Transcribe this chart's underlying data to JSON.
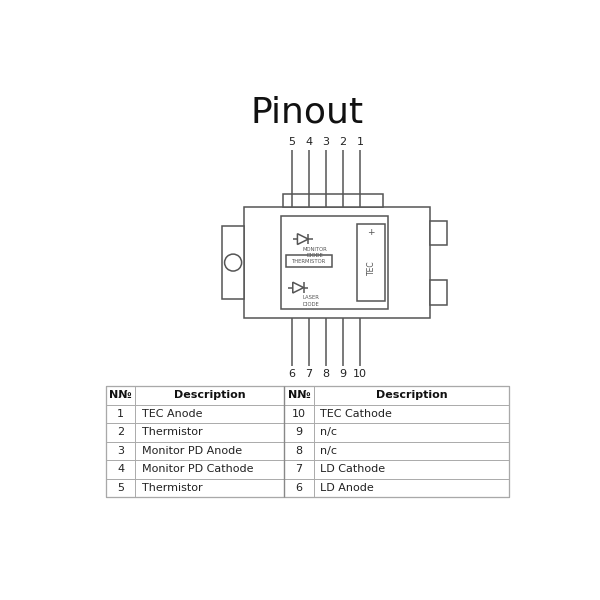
{
  "title": "Pinout",
  "title_fontsize": 26,
  "background_color": "#ffffff",
  "line_color": "#555555",
  "table_data": {
    "left": [
      [
        "1",
        "TEC Anode"
      ],
      [
        "2",
        "Thermistor"
      ],
      [
        "3",
        "Monitor PD Anode"
      ],
      [
        "4",
        "Monitor PD Cathode"
      ],
      [
        "5",
        "Thermistor"
      ]
    ],
    "right": [
      [
        "10",
        "TEC Cathode"
      ],
      [
        "9",
        "n/c"
      ],
      [
        "8",
        "n/c"
      ],
      [
        "7",
        "LD Cathode"
      ],
      [
        "6",
        "LD Anode"
      ]
    ]
  },
  "pin_numbers_top": [
    "5",
    "4",
    "3",
    "2",
    "1"
  ],
  "pin_numbers_bottom": [
    "6",
    "7",
    "8",
    "9",
    "10"
  ]
}
